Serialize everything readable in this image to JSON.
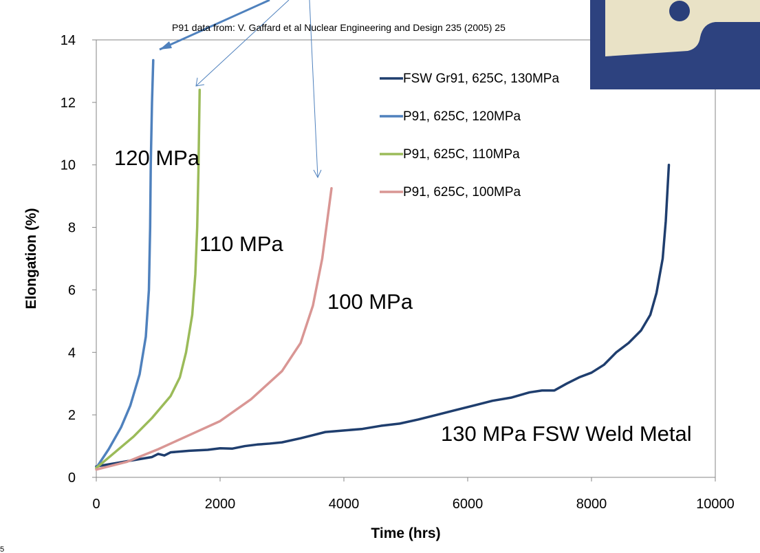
{
  "chart_data": {
    "type": "line",
    "title": "",
    "source_note": "P91 data from: V. Gaffard et al Nuclear Engineering and Design 235 (2005) 25",
    "xlabel": "Time (hrs)",
    "ylabel": "Elongation (%)",
    "xlim": [
      0,
      10000
    ],
    "ylim": [
      0,
      14
    ],
    "xticks": [
      "0",
      "2000",
      "4000",
      "6000",
      "8000",
      "10000"
    ],
    "yticks": [
      "0",
      "2",
      "4",
      "6",
      "8",
      "10",
      "12",
      "14"
    ],
    "grid": false,
    "legend_position": "top-right",
    "series": [
      {
        "name": "FSW Gr91, 625C, 130MPa",
        "color": "#1f3e6e",
        "points": [
          [
            0,
            0.35
          ],
          [
            300,
            0.45
          ],
          [
            600,
            0.55
          ],
          [
            900,
            0.65
          ],
          [
            1000,
            0.75
          ],
          [
            1100,
            0.7
          ],
          [
            1200,
            0.8
          ],
          [
            1500,
            0.85
          ],
          [
            1800,
            0.88
          ],
          [
            2000,
            0.93
          ],
          [
            2200,
            0.92
          ],
          [
            2400,
            1.0
          ],
          [
            2600,
            1.05
          ],
          [
            2800,
            1.08
          ],
          [
            3000,
            1.12
          ],
          [
            3300,
            1.25
          ],
          [
            3500,
            1.35
          ],
          [
            3700,
            1.45
          ],
          [
            4000,
            1.5
          ],
          [
            4300,
            1.55
          ],
          [
            4600,
            1.65
          ],
          [
            4900,
            1.72
          ],
          [
            5200,
            1.85
          ],
          [
            5500,
            2.0
          ],
          [
            5800,
            2.15
          ],
          [
            6100,
            2.3
          ],
          [
            6400,
            2.45
          ],
          [
            6700,
            2.55
          ],
          [
            7000,
            2.72
          ],
          [
            7200,
            2.78
          ],
          [
            7400,
            2.78
          ],
          [
            7600,
            3.0
          ],
          [
            7800,
            3.2
          ],
          [
            8000,
            3.35
          ],
          [
            8200,
            3.6
          ],
          [
            8400,
            4.0
          ],
          [
            8600,
            4.3
          ],
          [
            8800,
            4.7
          ],
          [
            8950,
            5.2
          ],
          [
            9050,
            5.9
          ],
          [
            9150,
            7.0
          ],
          [
            9200,
            8.2
          ],
          [
            9250,
            10.0
          ]
        ]
      },
      {
        "name": "P91, 625C, 120MPa",
        "color": "#4f81bd",
        "points": [
          [
            0,
            0.3
          ],
          [
            200,
            0.9
          ],
          [
            400,
            1.6
          ],
          [
            550,
            2.3
          ],
          [
            700,
            3.3
          ],
          [
            800,
            4.5
          ],
          [
            850,
            6.0
          ],
          [
            870,
            8.0
          ],
          [
            880,
            10.0
          ],
          [
            900,
            12.0
          ],
          [
            920,
            13.35
          ]
        ]
      },
      {
        "name": "P91, 625C, 110MPa",
        "color": "#9bbb59",
        "points": [
          [
            0,
            0.3
          ],
          [
            300,
            0.8
          ],
          [
            600,
            1.3
          ],
          [
            900,
            1.9
          ],
          [
            1200,
            2.6
          ],
          [
            1350,
            3.2
          ],
          [
            1450,
            4.0
          ],
          [
            1550,
            5.2
          ],
          [
            1600,
            6.5
          ],
          [
            1630,
            8.0
          ],
          [
            1650,
            9.8
          ],
          [
            1670,
            12.4
          ]
        ]
      },
      {
        "name": "P91, 625C, 100MPa",
        "color": "#d99694",
        "points": [
          [
            0,
            0.25
          ],
          [
            500,
            0.5
          ],
          [
            1000,
            0.9
          ],
          [
            1500,
            1.35
          ],
          [
            2000,
            1.8
          ],
          [
            2500,
            2.5
          ],
          [
            3000,
            3.4
          ],
          [
            3300,
            4.3
          ],
          [
            3500,
            5.5
          ],
          [
            3650,
            7.0
          ],
          [
            3750,
            8.5
          ],
          [
            3800,
            9.25
          ]
        ]
      }
    ],
    "annotations": [
      {
        "text": "120 MPa",
        "x": 520,
        "y": 10.1
      },
      {
        "text": "110 MPa",
        "x": 1650,
        "y": 7.5
      },
      {
        "text": "100 MPa",
        "x": 3740,
        "y": 5.5
      },
      {
        "text": "130 MPa FSW Weld Metal",
        "x": 5560,
        "y": 1.75
      }
    ]
  },
  "page_number": "5",
  "photo_inset": {
    "description_color": "#2a3f7a"
  }
}
